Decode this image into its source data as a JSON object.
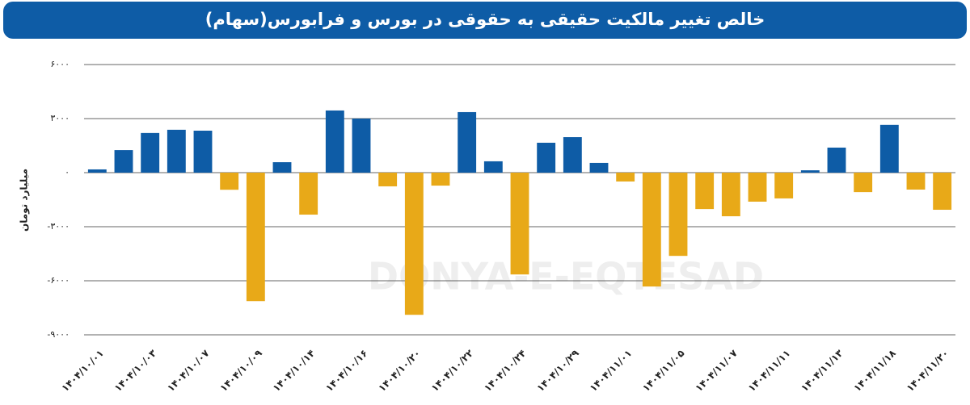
{
  "chart_data": {
    "type": "bar",
    "title": "خالص تغییر مالکیت حقیقی به حقوقی در بورس و فرابورس(سهام)",
    "y_label": "میلیارد تومان",
    "watermark": "DONYA-E-EQTESAD",
    "categories": [
      "۱۴۰۴/۱۰/۰۱",
      null,
      "۱۴۰۴/۱۰/۰۳",
      null,
      "۱۴۰۴/۱۰/۰۷",
      null,
      "۱۴۰۴/۱۰/۰۹",
      null,
      "۱۴۰۴/۱۰/۱۴",
      null,
      "۱۴۰۴/۱۰/۱۶",
      null,
      "۱۴۰۴/۱۰/۲۰",
      null,
      "۱۴۰۴/۱۰/۲۲",
      null,
      "۱۴۰۴/۱۰/۲۴",
      null,
      "۱۴۰۴/۱۰/۲۹",
      null,
      "۱۴۰۴/۱۱/۰۱",
      null,
      "۱۴۰۴/۱۱/۰۵",
      null,
      "۱۴۰۴/۱۱/۰۷",
      null,
      "۱۴۰۴/۱۱/۱۱",
      null,
      "۱۴۰۴/۱۱/۱۳",
      null,
      "۱۴۰۴/۱۱/۱۸",
      null,
      "۱۴۰۴/۱۱/۲۰"
    ],
    "values": [
      180,
      1250,
      2200,
      2380,
      2330,
      -950,
      -7130,
      580,
      -2330,
      3450,
      3000,
      -760,
      -7890,
      -720,
      3360,
      630,
      -5650,
      1660,
      1970,
      540,
      -490,
      -6320,
      -4620,
      -2020,
      -2420,
      -1610,
      -1430,
      130,
      1390,
      -1080,
      2650,
      -940,
      -2060
    ],
    "colors": {
      "positive": "#0e5ca6",
      "negative": "#e8a918"
    },
    "ylim": [
      -10500,
      7000
    ],
    "yticks": [
      {
        "value": 6000,
        "label": "۶۰۰۰"
      },
      {
        "value": 3000,
        "label": "۳۰۰۰"
      },
      {
        "value": 0,
        "label": "۰"
      },
      {
        "value": -3000,
        "label": "-۳۰۰۰"
      },
      {
        "value": -6000,
        "label": "-۶۰۰۰"
      },
      {
        "value": -9000,
        "label": "-۹۰۰۰"
      }
    ],
    "grid": true
  }
}
